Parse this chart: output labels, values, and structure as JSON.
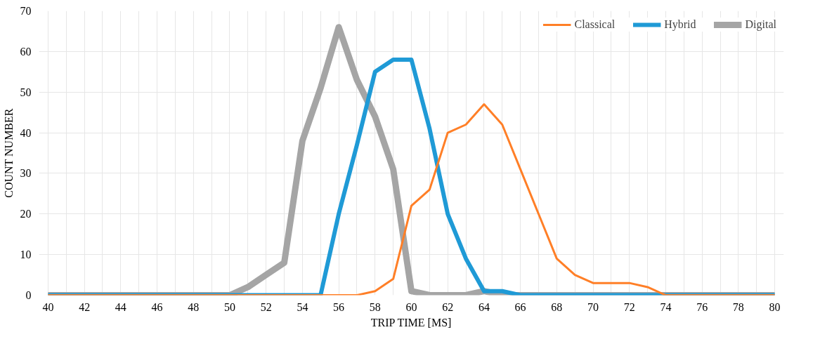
{
  "chart_data": {
    "type": "line",
    "xlabel": "TRIP TIME [MS]",
    "ylabel": "COUNT NUMBER",
    "x": [
      40,
      41,
      42,
      43,
      44,
      45,
      46,
      47,
      48,
      49,
      50,
      51,
      52,
      53,
      54,
      55,
      56,
      57,
      58,
      59,
      60,
      61,
      62,
      63,
      64,
      65,
      66,
      67,
      68,
      69,
      70,
      71,
      72,
      73,
      74,
      75,
      76,
      77,
      78,
      79,
      80
    ],
    "series": [
      {
        "name": "Classical",
        "color": "#ff7f27",
        "values": [
          0,
          0,
          0,
          0,
          0,
          0,
          0,
          0,
          0,
          0,
          0,
          0,
          0,
          0,
          0,
          0,
          0,
          0,
          1,
          4,
          22,
          26,
          40,
          42,
          47,
          42,
          31,
          20,
          9,
          5,
          3,
          3,
          3,
          2,
          0,
          0,
          0,
          0,
          0,
          0,
          0
        ]
      },
      {
        "name": "Hybrid",
        "color": "#1f9ad6",
        "values": [
          0,
          0,
          0,
          0,
          0,
          0,
          0,
          0,
          0,
          0,
          0,
          0,
          0,
          0,
          0,
          0,
          20,
          37,
          55,
          58,
          58,
          41,
          20,
          9,
          1,
          1,
          0,
          0,
          0,
          0,
          0,
          0,
          0,
          0,
          0,
          0,
          0,
          0,
          0,
          0,
          0
        ]
      },
      {
        "name": "Digital",
        "color": "#a5a5a5",
        "values": [
          0,
          0,
          0,
          0,
          0,
          0,
          0,
          0,
          0,
          0,
          0,
          2,
          5,
          8,
          38,
          51,
          66,
          53,
          44,
          31,
          1,
          0,
          0,
          0,
          1,
          0,
          0,
          0,
          0,
          0,
          0,
          0,
          0,
          0,
          0,
          0,
          0,
          0,
          0,
          0,
          0
        ]
      }
    ],
    "xlim": [
      39.5,
      80.5
    ],
    "ylim": [
      0,
      70
    ],
    "xticks": [
      40,
      {
        "value": 41,
        "label": null
      },
      42,
      {
        "value": 43,
        "label": null
      },
      44,
      {
        "value": 45,
        "label": null
      },
      46,
      {
        "value": 47,
        "label": null
      },
      48,
      {
        "value": 49,
        "label": null
      },
      50,
      {
        "value": 51,
        "label": null
      },
      52,
      {
        "value": 53,
        "label": null
      },
      54,
      {
        "value": 55,
        "label": null
      },
      56,
      {
        "value": 57,
        "label": null
      },
      58,
      {
        "value": 59,
        "label": null
      },
      60,
      {
        "value": 61,
        "label": null
      },
      62,
      {
        "value": 63,
        "label": null
      },
      64,
      {
        "value": 65,
        "label": null
      },
      66,
      {
        "value": 67,
        "label": null
      },
      68,
      {
        "value": 69,
        "label": null
      },
      70,
      {
        "value": 71,
        "label": null
      },
      72,
      {
        "value": 73,
        "label": null
      },
      74,
      {
        "value": 75,
        "label": null
      },
      76,
      {
        "value": 77,
        "label": null
      },
      78,
      {
        "value": 79,
        "label": null
      },
      80
    ],
    "yticks": [
      0,
      10,
      20,
      30,
      40,
      50,
      60,
      70
    ],
    "grid": true,
    "legend": "top right",
    "marker": "none",
    "line_style": "solid"
  }
}
